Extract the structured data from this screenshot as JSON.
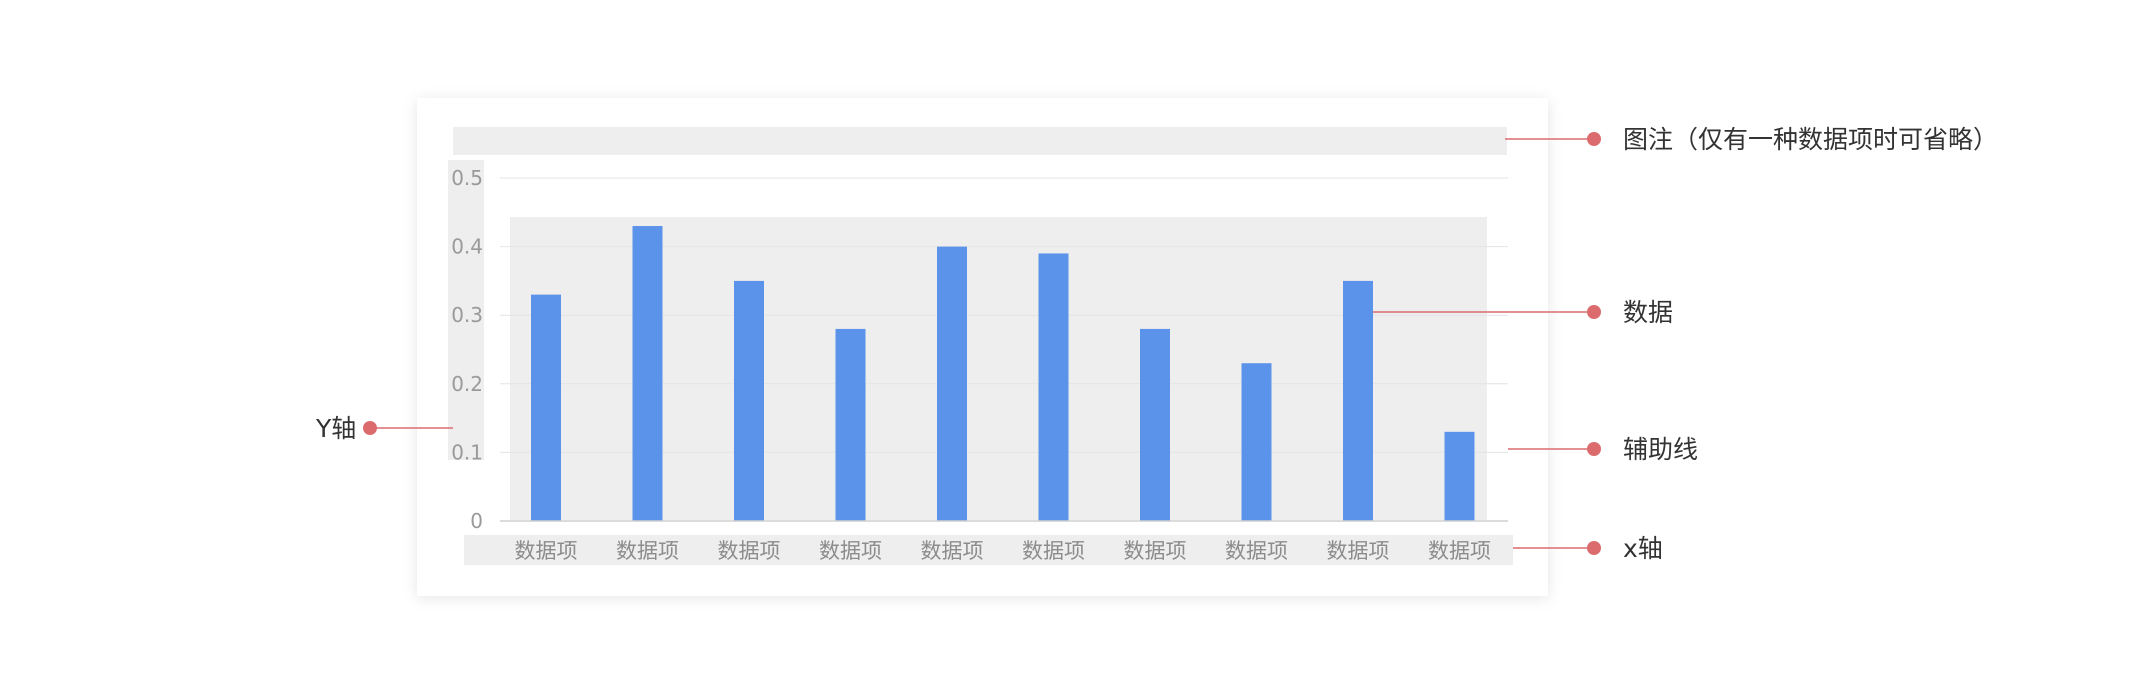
{
  "chart_data": {
    "type": "bar",
    "categories": [
      "数据项",
      "数据项",
      "数据项",
      "数据项",
      "数据项",
      "数据项",
      "数据项",
      "数据项",
      "数据项",
      "数据项"
    ],
    "values": [
      0.33,
      0.43,
      0.35,
      0.28,
      0.4,
      0.39,
      0.28,
      0.23,
      0.35,
      0.13
    ],
    "ylim": [
      0,
      0.5
    ],
    "yticks": [
      "0.5",
      "0.4",
      "0.3",
      "0.2",
      "0.1",
      "0"
    ],
    "grid": true,
    "bar_color": "#5b93ea"
  },
  "annotations": {
    "legend": "图注（仅有一种数据项时可省略）",
    "data": "数据",
    "gridline": "辅助线",
    "x_axis": "x轴",
    "y_axis": "Y轴",
    "marker_color": "#dc6b6e"
  },
  "colors": {
    "placeholder": "#eeeeee",
    "gridline": "#e4e4e4",
    "axis": "#cfcfcf"
  }
}
